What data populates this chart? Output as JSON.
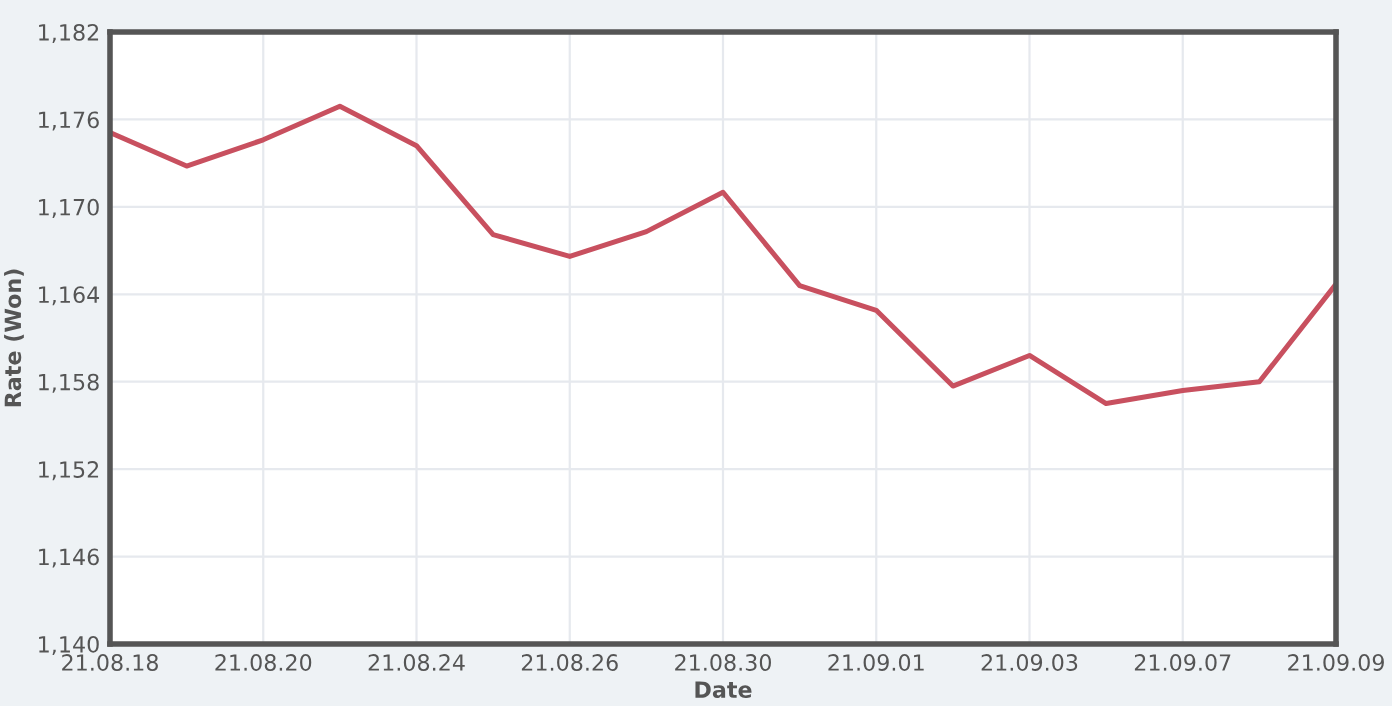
{
  "chart_data": {
    "type": "line",
    "xlabel": "Date",
    "ylabel": "Rate (Won)",
    "categories": [
      "21.08.18",
      null,
      "21.08.20",
      null,
      "21.08.24",
      null,
      "21.08.26",
      null,
      "21.08.30",
      null,
      "21.09.01",
      null,
      "21.09.03",
      null,
      "21.09.07",
      null,
      "21.09.09"
    ],
    "series": [
      {
        "color": "#c8505f",
        "values": [
          1175.1,
          1172.8,
          1174.6,
          1176.9,
          1174.2,
          1168.1,
          1166.6,
          1168.3,
          1171.0,
          1164.6,
          1162.9,
          1157.7,
          1159.8,
          1156.5,
          1157.4,
          1158.0,
          1164.7
        ]
      }
    ],
    "ylim": [
      1140,
      1182
    ],
    "yticks": [
      {
        "value": 1140,
        "label": "1,140"
      },
      {
        "value": 1146,
        "label": "1,146"
      },
      {
        "value": 1152,
        "label": "1,152"
      },
      {
        "value": 1158,
        "label": "1,158"
      },
      {
        "value": 1164,
        "label": "1,164"
      },
      {
        "value": 1170,
        "label": "1,170"
      },
      {
        "value": 1176,
        "label": "1,176"
      },
      {
        "value": 1182,
        "label": "1,182"
      }
    ],
    "grid": true,
    "marker": "none",
    "line_style": "solid",
    "legend": false
  }
}
